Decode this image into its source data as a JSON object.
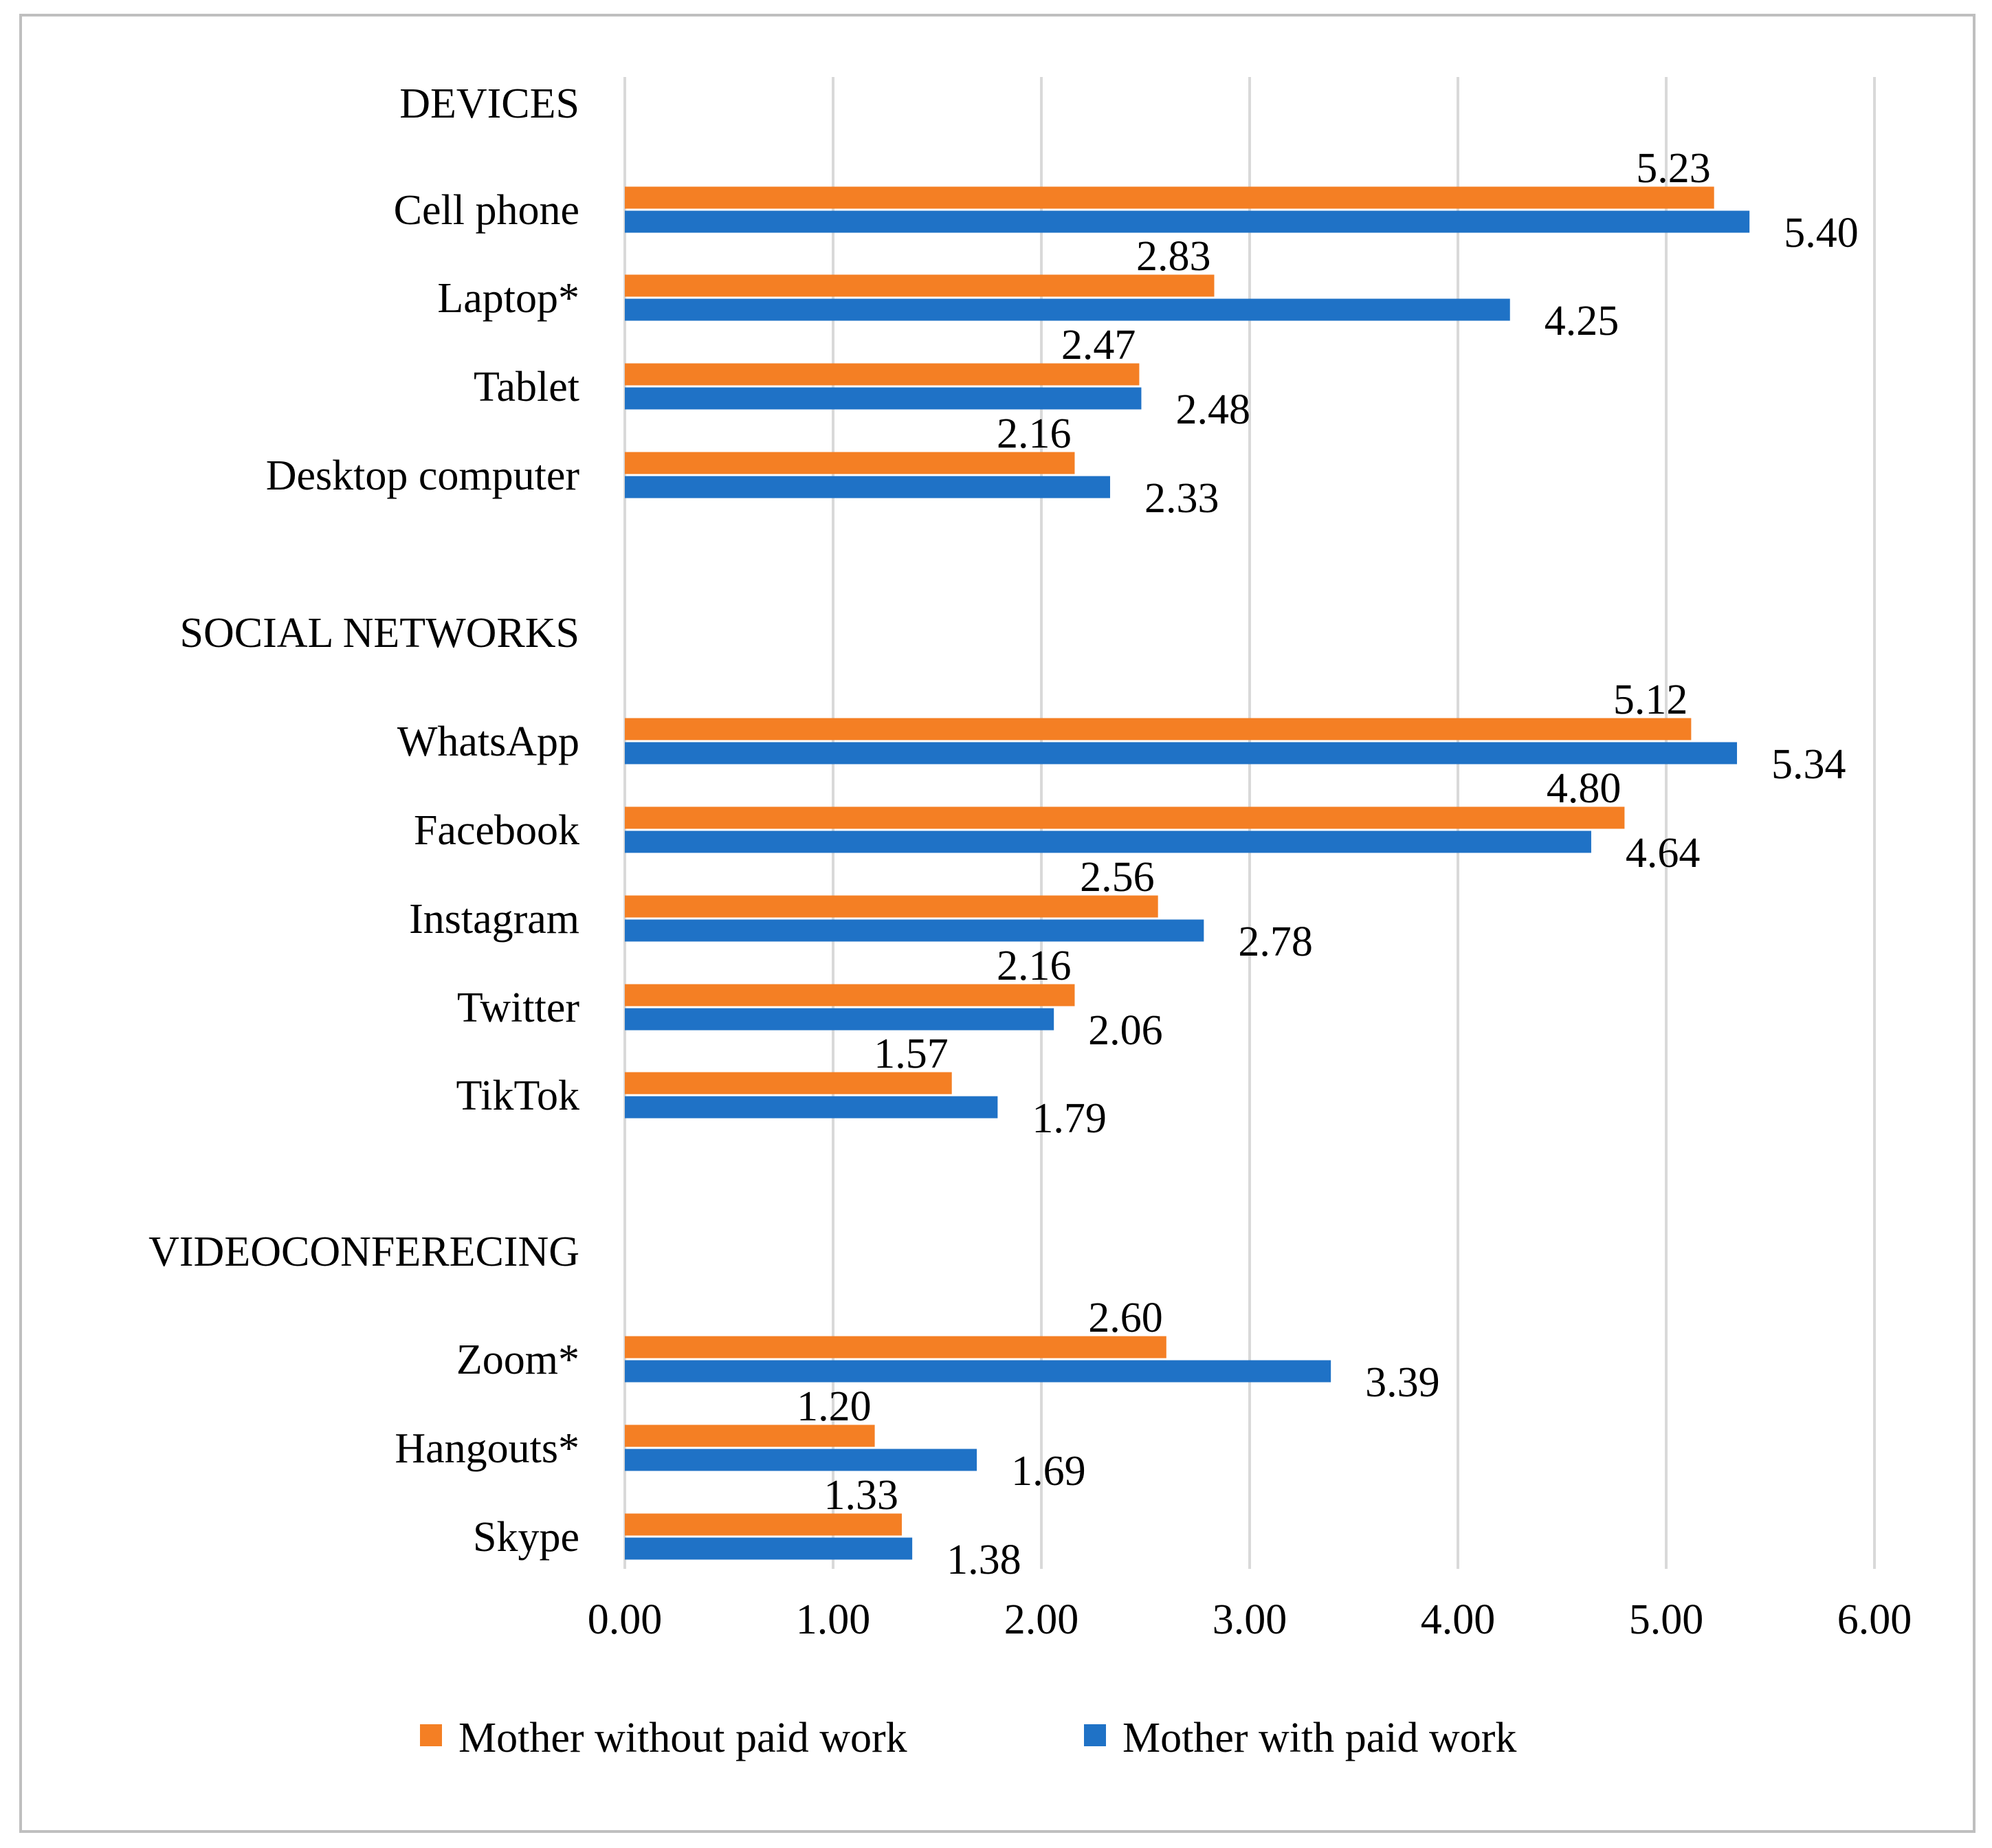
{
  "chart_data": {
    "type": "bar",
    "orientation": "horizontal",
    "title": "",
    "xlabel": "",
    "ylabel": "",
    "xlim": [
      0,
      6
    ],
    "x_ticks": [
      "0.00",
      "1.00",
      "2.00",
      "3.00",
      "4.00",
      "5.00",
      "6.00"
    ],
    "grid": "vertical",
    "legend_position": "bottom",
    "series": [
      {
        "name": "Mother without paid work",
        "color": "#f47f24"
      },
      {
        "name": "Mother with paid work",
        "color": "#1f72c6"
      }
    ],
    "groups": [
      {
        "heading": "DEVICES",
        "items": [
          {
            "label": "Cell phone",
            "without": 5.23,
            "with": 5.4,
            "without_label": "5.23",
            "with_label": "5.40"
          },
          {
            "label": "Laptop*",
            "without": 2.83,
            "with": 4.25,
            "without_label": "2.83",
            "with_label": "4.25"
          },
          {
            "label": "Tablet",
            "without": 2.47,
            "with": 2.48,
            "without_label": "2.47",
            "with_label": "2.48"
          },
          {
            "label": "Desktop computer",
            "without": 2.16,
            "with": 2.33,
            "without_label": "2.16",
            "with_label": "2.33"
          }
        ]
      },
      {
        "heading": "SOCIAL NETWORKS",
        "items": [
          {
            "label": "WhatsApp",
            "without": 5.12,
            "with": 5.34,
            "without_label": "5.12",
            "with_label": "5.34"
          },
          {
            "label": "Facebook",
            "without": 4.8,
            "with": 4.64,
            "without_label": "4.80",
            "with_label": "4.64"
          },
          {
            "label": "Instagram",
            "without": 2.56,
            "with": 2.78,
            "without_label": "2.56",
            "with_label": "2.78"
          },
          {
            "label": "Twitter",
            "without": 2.16,
            "with": 2.06,
            "without_label": "2.16",
            "with_label": "2.06"
          },
          {
            "label": "TikTok",
            "without": 1.57,
            "with": 1.79,
            "without_label": "1.57",
            "with_label": "1.79"
          }
        ]
      },
      {
        "heading": "VIDEOCONFERECING",
        "items": [
          {
            "label": "Zoom*",
            "without": 2.6,
            "with": 3.39,
            "without_label": "2.60",
            "with_label": "3.39"
          },
          {
            "label": "Hangouts*",
            "without": 1.2,
            "with": 1.69,
            "without_label": "1.20",
            "with_label": "1.69"
          },
          {
            "label": "Skype",
            "without": 1.33,
            "with": 1.38,
            "without_label": "1.33",
            "with_label": "1.38"
          }
        ]
      }
    ]
  }
}
